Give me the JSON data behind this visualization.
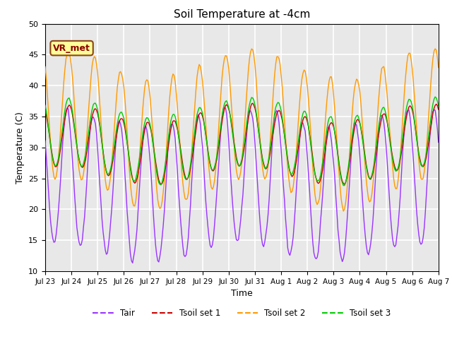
{
  "title": "Soil Temperature at -4cm",
  "xlabel": "Time",
  "ylabel": "Temperature (C)",
  "ylim": [
    10,
    50
  ],
  "colors": {
    "Tair": "#9933FF",
    "Tsoil_set1": "#CC0000",
    "Tsoil_set2": "#FF9900",
    "Tsoil_set3": "#00CC00"
  },
  "legend_labels": [
    "Tair",
    "Tsoil set 1",
    "Tsoil set 2",
    "Tsoil set 3"
  ],
  "annotation_text": "VR_met",
  "plot_bg_color": "#E8E8E8",
  "grid_color": "white",
  "title_fontsize": 11,
  "tick_labels": [
    "Jul 23",
    "Jul 24",
    "Jul 25",
    "Jul 26",
    "Jul 27",
    "Jul 28",
    "Jul 29",
    "Jul 30",
    "Jul 31",
    "Aug 1",
    "Aug 2",
    "Aug 3",
    "Aug 4",
    "Aug 5",
    "Aug 6",
    "Aug 7"
  ],
  "n_days": 15,
  "seed": 42
}
